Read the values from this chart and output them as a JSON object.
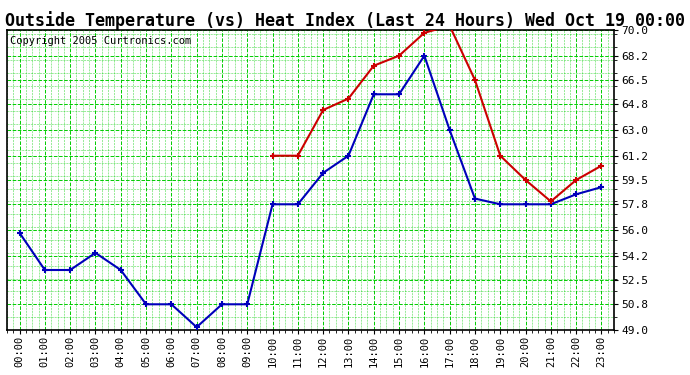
{
  "title": "Outside Temperature (vs) Heat Index (Last 24 Hours) Wed Oct 19 00:00",
  "copyright": "Copyright 2005 Curtronics.com",
  "x_labels": [
    "00:00",
    "01:00",
    "02:00",
    "03:00",
    "04:00",
    "05:00",
    "06:00",
    "07:00",
    "08:00",
    "09:00",
    "10:00",
    "11:00",
    "12:00",
    "13:00",
    "14:00",
    "15:00",
    "16:00",
    "17:00",
    "18:00",
    "19:00",
    "20:00",
    "21:00",
    "22:00",
    "23:00"
  ],
  "blue_data": [
    55.8,
    53.2,
    53.2,
    54.4,
    53.2,
    50.8,
    50.8,
    49.2,
    50.8,
    50.8,
    57.8,
    57.8,
    60.0,
    61.2,
    65.5,
    65.5,
    68.2,
    63.0,
    58.2,
    57.8,
    57.8,
    57.8,
    58.5,
    59.0
  ],
  "red_data": [
    null,
    null,
    null,
    null,
    null,
    null,
    null,
    null,
    null,
    null,
    61.2,
    61.2,
    64.4,
    65.2,
    67.5,
    68.2,
    69.8,
    70.3,
    66.5,
    61.2,
    59.5,
    58.0,
    59.5,
    60.5
  ],
  "ylim": [
    49.0,
    70.0
  ],
  "yticks": [
    49.0,
    50.8,
    52.5,
    54.2,
    56.0,
    57.8,
    59.5,
    61.2,
    63.0,
    64.8,
    66.5,
    68.2,
    70.0
  ],
  "blue_color": "#0000bb",
  "red_color": "#cc0000",
  "bg_color": "#ffffff",
  "plot_bg_color": "#ffffff",
  "grid_major_color": "#00cc00",
  "grid_minor_color": "#00cc00",
  "title_fontsize": 12,
  "copyright_fontsize": 7.5
}
